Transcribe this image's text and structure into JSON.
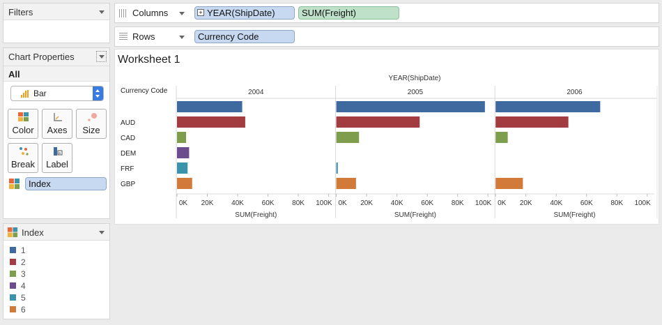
{
  "filters": {
    "title": "Filters"
  },
  "chart_properties": {
    "title": "Chart Properties",
    "all_label": "All",
    "mark_type": "Bar",
    "buttons": {
      "color": "Color",
      "axes": "Axes",
      "size": "Size",
      "break": "Break",
      "label": "Label"
    },
    "color_field": "Index"
  },
  "legend": {
    "title": "Index",
    "items": [
      {
        "label": "1",
        "color": "#3e6aa0"
      },
      {
        "label": "2",
        "color": "#a23c40"
      },
      {
        "label": "3",
        "color": "#7f9e4d"
      },
      {
        "label": "4",
        "color": "#6b4c8c"
      },
      {
        "label": "5",
        "color": "#3a93aa"
      },
      {
        "label": "6",
        "color": "#d27a3a"
      }
    ]
  },
  "shelves": {
    "columns_label": "Columns",
    "column_pills": [
      "YEAR(ShipDate)",
      "SUM(Freight)"
    ],
    "rows_label": "Rows",
    "row_pills": [
      "Currency Code"
    ]
  },
  "worksheet": {
    "title": "Worksheet 1"
  },
  "chart_data": {
    "type": "bar",
    "column_header": "YEAR(ShipDate)",
    "row_header": "Currency Code",
    "panels": [
      "2004",
      "2005",
      "2006"
    ],
    "categories": [
      "",
      "AUD",
      "CAD",
      "DEM",
      "FRF",
      "GBP"
    ],
    "series": [
      {
        "name": "2004",
        "values": [
          43000,
          45000,
          6000,
          8000,
          7000,
          10000
        ]
      },
      {
        "name": "2005",
        "values": [
          98000,
          55000,
          15000,
          0,
          1000,
          13000
        ]
      },
      {
        "name": "2006",
        "values": [
          69000,
          48000,
          8000,
          0,
          0,
          18000
        ]
      }
    ],
    "colors": [
      "#3e6aa0",
      "#a23c40",
      "#7f9e4d",
      "#6b4c8c",
      "#3a93aa",
      "#d27a3a"
    ],
    "xlabel": "SUM(Freight)",
    "xlim": [
      0,
      100000
    ],
    "ticks": [
      0,
      20000,
      40000,
      60000,
      80000,
      100000
    ],
    "tick_labels": [
      "0K",
      "20K",
      "40K",
      "60K",
      "80K",
      "100K"
    ]
  }
}
